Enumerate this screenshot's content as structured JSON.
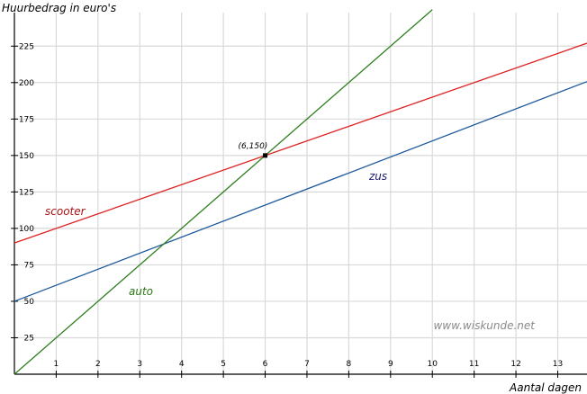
{
  "chart_data": {
    "type": "line",
    "xlabel": "Aantal dagen",
    "ylabel": "Huurbedrag in euro's",
    "xlim": [
      0,
      13.7
    ],
    "ylim": [
      0,
      248
    ],
    "x_ticks": [
      1,
      2,
      3,
      4,
      5,
      6,
      7,
      8,
      9,
      10,
      11,
      12,
      13
    ],
    "y_ticks": [
      25,
      50,
      75,
      100,
      125,
      150,
      175,
      200,
      225
    ],
    "grid": true,
    "series": [
      {
        "name": "scooter",
        "color": "#dd2222",
        "label_color": "#aa1111",
        "x": [
          0,
          13.7
        ],
        "y": [
          90,
          227
        ]
      },
      {
        "name": "zus",
        "color": "#1f5a9c",
        "label_color": "#1a1a6e",
        "x": [
          0,
          13.7
        ],
        "y": [
          50,
          200.7
        ]
      },
      {
        "name": "auto",
        "color": "#2f7f1f",
        "label_color": "#2a7a10",
        "x": [
          0,
          10
        ],
        "y": [
          0,
          250
        ]
      }
    ],
    "annotations": [
      {
        "label": "(6,150)",
        "x": 6,
        "y": 150
      }
    ],
    "watermark": "www.wiskunde.net"
  }
}
